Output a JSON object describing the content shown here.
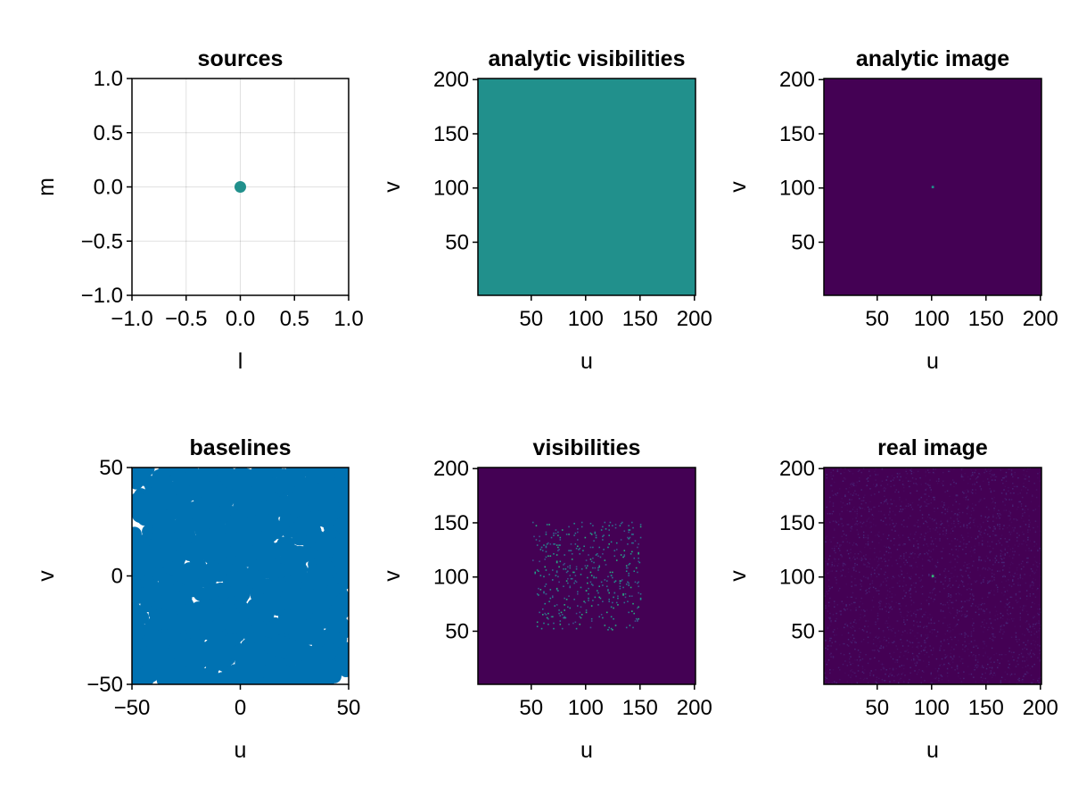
{
  "chart_data": [
    {
      "id": "sources",
      "type": "scatter",
      "title": "sources",
      "xlabel": "l",
      "ylabel": "m",
      "xlim": [
        -1.0,
        1.0
      ],
      "ylim": [
        -1.0,
        1.0
      ],
      "xticks": [
        "−1.0",
        "−0.5",
        "0.0",
        "0.5",
        "1.0"
      ],
      "xtick_values": [
        -1.0,
        -0.5,
        0.0,
        0.5,
        1.0
      ],
      "yticks": [
        "−1.0",
        "−0.5",
        "0.0",
        "0.5",
        "1.0"
      ],
      "ytick_values": [
        -1.0,
        -0.5,
        0.0,
        0.5,
        1.0
      ],
      "grid": true,
      "series": [
        {
          "x": [
            0.0
          ],
          "y": [
            0.0
          ],
          "color": "#21908c"
        }
      ]
    },
    {
      "id": "analytic-visibilities",
      "type": "heatmap",
      "title": "analytic visibilities",
      "xlabel": "u",
      "ylabel": "v",
      "xlim": [
        1,
        201
      ],
      "ylim": [
        1,
        201
      ],
      "xticks": [
        "50",
        "100",
        "150",
        "200"
      ],
      "xtick_values": [
        50,
        100,
        150,
        200
      ],
      "yticks": [
        "50",
        "100",
        "150",
        "200"
      ],
      "ytick_values": [
        50,
        100,
        150,
        200
      ],
      "grid": false,
      "background_color": "#21908c",
      "description_values": "uniform constant field"
    },
    {
      "id": "analytic-image",
      "type": "heatmap",
      "title": "analytic image",
      "xlabel": "u",
      "ylabel": "v",
      "xlim": [
        1,
        201
      ],
      "ylim": [
        1,
        201
      ],
      "xticks": [
        "50",
        "100",
        "150",
        "200"
      ],
      "xtick_values": [
        50,
        100,
        150,
        200
      ],
      "yticks": [
        "50",
        "100",
        "150",
        "200"
      ],
      "ytick_values": [
        50,
        100,
        150,
        200
      ],
      "grid": false,
      "background_color": "#440154",
      "peak": {
        "x": 101,
        "y": 101,
        "color": "#21908c"
      }
    },
    {
      "id": "baselines",
      "type": "scatter",
      "title": "baselines",
      "xlabel": "u",
      "ylabel": "v",
      "xlim": [
        -50,
        50
      ],
      "ylim": [
        -50,
        50
      ],
      "xticks": [
        "−50",
        "0",
        "50"
      ],
      "xtick_values": [
        -50,
        0,
        50
      ],
      "yticks": [
        "−50",
        "0",
        "50"
      ],
      "ytick_values": [
        -50,
        0,
        50
      ],
      "grid": false,
      "marker_color": "#0072b2",
      "point_count": 1500,
      "point_range": [
        -50,
        50
      ]
    },
    {
      "id": "visibilities",
      "type": "heatmap",
      "title": "visibilities",
      "xlabel": "u",
      "ylabel": "v",
      "xlim": [
        1,
        201
      ],
      "ylim": [
        1,
        201
      ],
      "xticks": [
        "50",
        "100",
        "150",
        "200"
      ],
      "xtick_values": [
        50,
        100,
        150,
        200
      ],
      "yticks": [
        "50",
        "100",
        "150",
        "200"
      ],
      "ytick_values": [
        50,
        100,
        150,
        200
      ],
      "grid": false,
      "background_color": "#440154",
      "sampled_region": {
        "u": [
          51,
          151
        ],
        "v": [
          51,
          151
        ]
      },
      "sample_count": 420,
      "sample_colors": [
        "#3b528b",
        "#31688e",
        "#2c728e",
        "#21908c",
        "#27ad81"
      ]
    },
    {
      "id": "real-image",
      "type": "heatmap",
      "title": "real image",
      "xlabel": "u",
      "ylabel": "v",
      "xlim": [
        1,
        201
      ],
      "ylim": [
        1,
        201
      ],
      "xticks": [
        "50",
        "100",
        "150",
        "200"
      ],
      "xtick_values": [
        50,
        100,
        150,
        200
      ],
      "yticks": [
        "50",
        "100",
        "150",
        "200"
      ],
      "ytick_values": [
        50,
        100,
        150,
        200
      ],
      "grid": false,
      "background_color": "#440154",
      "noise_colors": [
        "#440154",
        "#46085c",
        "#471063",
        "#48186a",
        "#482475"
      ],
      "peak": {
        "x": 101,
        "y": 101,
        "color": "#35b779"
      }
    }
  ]
}
